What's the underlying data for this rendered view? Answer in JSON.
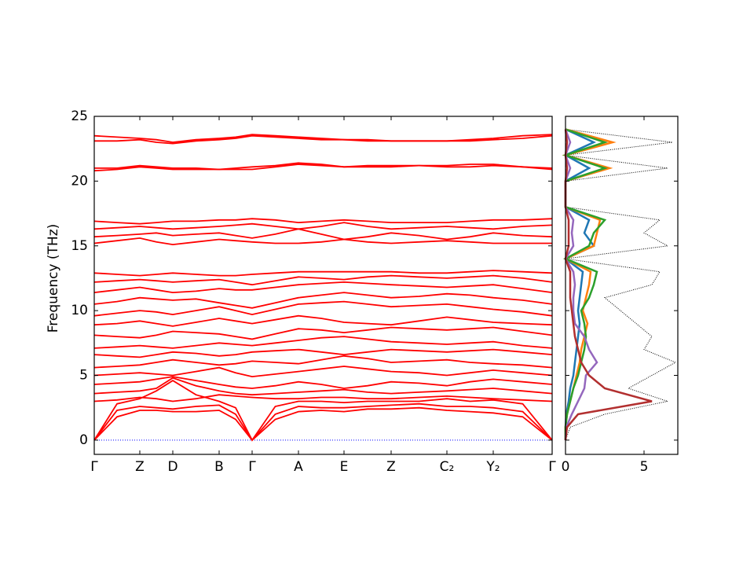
{
  "chart_data": [
    {
      "type": "band",
      "ylabel": "Frequency (THz)",
      "x": [
        0,
        0.29,
        0.58,
        0.79,
        1.0,
        1.295,
        1.59,
        1.8,
        2.01,
        2.305,
        2.6,
        2.89,
        3.18,
        3.48,
        3.78,
        4.135,
        4.49,
        4.785,
        5.08,
        5.455,
        5.83
      ],
      "xlim": [
        0,
        5.83
      ],
      "xticks": [
        {
          "value": 0,
          "label": "Γ"
        },
        {
          "value": 0.58,
          "label": "Z"
        },
        {
          "value": 1.0,
          "label": "D"
        },
        {
          "value": 1.59,
          "label": "B"
        },
        {
          "value": 2.01,
          "label": "Γ"
        },
        {
          "value": 2.6,
          "label": "A"
        },
        {
          "value": 3.18,
          "label": "E"
        },
        {
          "value": 3.78,
          "label": "Z"
        },
        {
          "value": 4.49,
          "label": "C₂"
        },
        {
          "value": 5.08,
          "label": "Y₂"
        },
        {
          "value": 5.83,
          "label": "Γ"
        }
      ],
      "ylim": [
        -1.1,
        25
      ],
      "yticks": [
        0,
        5,
        10,
        15,
        20,
        25
      ],
      "color": "#ff0000",
      "zero_line_color": "#0000ff",
      "bands": [
        [
          0,
          1.8,
          2.3,
          2.3,
          2.2,
          2.2,
          2.3,
          1.6,
          0,
          1.6,
          2.2,
          2.3,
          2.2,
          2.4,
          2.4,
          2.5,
          2.3,
          2.2,
          2.1,
          1.8,
          0
        ],
        [
          0,
          2.3,
          2.6,
          2.5,
          2.4,
          2.6,
          2.7,
          2.0,
          0,
          2.0,
          2.6,
          2.5,
          2.5,
          2.6,
          2.7,
          2.8,
          2.6,
          2.6,
          2.5,
          2.2,
          0
        ],
        [
          0,
          2.8,
          3.2,
          3.8,
          4.6,
          3.5,
          3.0,
          2.5,
          0,
          2.6,
          3.0,
          3.0,
          2.9,
          3.0,
          3.0,
          3.0,
          3.2,
          3.0,
          3.1,
          2.8,
          0
        ],
        [
          3.0,
          3.1,
          3.3,
          3.2,
          3.0,
          3.2,
          3.5,
          3.4,
          3.3,
          3.2,
          3.2,
          3.3,
          3.3,
          3.2,
          3.2,
          3.3,
          3.4,
          3.3,
          3.2,
          3.1,
          3.0
        ],
        [
          3.6,
          3.7,
          3.8,
          4.0,
          4.8,
          4.2,
          3.8,
          3.6,
          3.5,
          3.6,
          3.7,
          3.8,
          3.9,
          3.7,
          3.6,
          3.7,
          3.8,
          3.9,
          4.0,
          3.8,
          3.6
        ],
        [
          4.3,
          4.4,
          4.5,
          4.7,
          4.9,
          4.6,
          4.3,
          4.1,
          4.0,
          4.2,
          4.5,
          4.3,
          4.0,
          4.2,
          4.5,
          4.4,
          4.2,
          4.5,
          4.7,
          4.5,
          4.3
        ],
        [
          5.0,
          5.1,
          5.2,
          5.1,
          5.0,
          5.3,
          5.6,
          5.2,
          4.9,
          5.1,
          5.3,
          5.5,
          5.7,
          5.5,
          5.3,
          5.2,
          5.0,
          5.2,
          5.4,
          5.2,
          5.0
        ],
        [
          5.6,
          5.7,
          5.8,
          6.0,
          6.2,
          6.0,
          5.8,
          5.9,
          6.1,
          6.0,
          5.9,
          6.2,
          6.5,
          6.3,
          6.0,
          6.1,
          6.2,
          6.0,
          5.9,
          5.8,
          5.6
        ],
        [
          6.6,
          6.5,
          6.4,
          6.6,
          6.8,
          6.7,
          6.5,
          6.6,
          6.8,
          6.9,
          7.0,
          6.8,
          6.6,
          6.8,
          7.0,
          6.9,
          6.8,
          6.9,
          7.0,
          6.8,
          6.6
        ],
        [
          7.1,
          7.2,
          7.3,
          7.2,
          7.1,
          7.3,
          7.5,
          7.4,
          7.3,
          7.5,
          7.7,
          7.9,
          8.0,
          7.8,
          7.6,
          7.5,
          7.4,
          7.5,
          7.6,
          7.3,
          7.1
        ],
        [
          8.1,
          8.0,
          7.9,
          8.1,
          8.4,
          8.3,
          8.2,
          8.0,
          7.8,
          8.2,
          8.6,
          8.5,
          8.3,
          8.5,
          8.7,
          8.6,
          8.5,
          8.6,
          8.7,
          8.4,
          8.1
        ],
        [
          8.9,
          9.0,
          9.2,
          9.0,
          8.8,
          9.1,
          9.4,
          9.2,
          9.0,
          9.3,
          9.6,
          9.4,
          9.1,
          9.0,
          8.9,
          9.2,
          9.5,
          9.3,
          9.1,
          9.0,
          8.9
        ],
        [
          9.6,
          9.8,
          10.0,
          9.9,
          9.7,
          10.0,
          10.3,
          10.0,
          9.7,
          10.1,
          10.5,
          10.6,
          10.7,
          10.5,
          10.3,
          10.4,
          10.5,
          10.3,
          10.1,
          9.9,
          9.6
        ],
        [
          10.5,
          10.7,
          11.0,
          10.9,
          10.8,
          10.9,
          10.6,
          10.4,
          10.2,
          10.6,
          11.0,
          11.2,
          11.4,
          11.2,
          11.0,
          11.1,
          11.3,
          11.2,
          11.0,
          10.8,
          10.5
        ],
        [
          11.4,
          11.6,
          11.8,
          11.6,
          11.4,
          11.5,
          11.7,
          11.6,
          11.6,
          11.8,
          12.0,
          12.1,
          12.2,
          12.1,
          12.0,
          11.9,
          11.8,
          11.9,
          12.0,
          11.7,
          11.4
        ],
        [
          12.2,
          12.3,
          12.4,
          12.3,
          12.2,
          12.3,
          12.4,
          12.2,
          12.0,
          12.3,
          12.6,
          12.5,
          12.4,
          12.6,
          12.7,
          12.6,
          12.5,
          12.6,
          12.7,
          12.5,
          12.2
        ],
        [
          12.9,
          12.8,
          12.7,
          12.8,
          12.9,
          12.8,
          12.7,
          12.7,
          12.8,
          12.9,
          13.0,
          13.0,
          13.0,
          13.0,
          13.0,
          12.9,
          12.9,
          13.0,
          13.1,
          13.0,
          12.9
        ],
        [
          15.2,
          15.4,
          15.6,
          15.3,
          15.1,
          15.3,
          15.5,
          15.4,
          15.3,
          15.2,
          15.2,
          15.3,
          15.5,
          15.3,
          15.2,
          15.3,
          15.4,
          15.3,
          15.2,
          15.2,
          15.2
        ],
        [
          15.7,
          15.8,
          15.9,
          16.0,
          15.8,
          15.9,
          16.0,
          15.8,
          15.6,
          15.9,
          16.3,
          15.9,
          15.5,
          15.7,
          16.0,
          15.8,
          15.5,
          15.7,
          16.0,
          15.8,
          15.7
        ],
        [
          16.3,
          16.4,
          16.5,
          16.4,
          16.3,
          16.4,
          16.5,
          16.6,
          16.7,
          16.5,
          16.3,
          16.5,
          16.8,
          16.5,
          16.3,
          16.4,
          16.5,
          16.4,
          16.3,
          16.5,
          16.6
        ],
        [
          16.9,
          16.8,
          16.7,
          16.8,
          16.9,
          16.9,
          17.0,
          17.0,
          17.1,
          17.0,
          16.8,
          16.9,
          17.0,
          16.9,
          16.8,
          16.8,
          16.8,
          16.9,
          17.0,
          17.0,
          17.1
        ],
        [
          20.8,
          20.9,
          21.1,
          21.0,
          20.9,
          20.9,
          20.9,
          20.9,
          20.9,
          21.1,
          21.3,
          21.2,
          21.1,
          21.1,
          21.1,
          21.2,
          21.2,
          21.3,
          21.3,
          21.1,
          20.9
        ],
        [
          21.0,
          21.0,
          21.2,
          21.1,
          21.0,
          21.0,
          20.9,
          21.0,
          21.1,
          21.2,
          21.4,
          21.3,
          21.1,
          21.2,
          21.2,
          21.2,
          21.1,
          21.1,
          21.2,
          21.1,
          21.0
        ],
        [
          23.1,
          23.1,
          23.2,
          23.0,
          22.9,
          23.1,
          23.2,
          23.3,
          23.5,
          23.4,
          23.3,
          23.2,
          23.2,
          23.1,
          23.1,
          23.1,
          23.1,
          23.1,
          23.2,
          23.3,
          23.5
        ],
        [
          23.5,
          23.4,
          23.3,
          23.2,
          23.0,
          23.2,
          23.3,
          23.4,
          23.6,
          23.5,
          23.4,
          23.3,
          23.2,
          23.2,
          23.1,
          23.1,
          23.1,
          23.2,
          23.3,
          23.5,
          23.6
        ]
      ]
    },
    {
      "type": "dos",
      "freq": [
        0,
        1,
        2,
        3,
        4,
        5,
        6,
        7,
        8,
        9,
        10,
        11,
        12,
        13,
        14,
        15,
        16,
        17,
        18,
        19,
        20,
        21,
        22,
        23,
        24
      ],
      "xlim": [
        0,
        7.15
      ],
      "xticks": [
        0,
        5
      ],
      "ylim": [
        -1.1,
        25
      ],
      "yticks": [
        0,
        5,
        10,
        15,
        20,
        25
      ],
      "total": {
        "color": "#000000",
        "values": [
          0,
          0.3,
          2.5,
          6.5,
          4,
          5.5,
          7,
          5,
          5.5,
          4.5,
          3.5,
          2.5,
          5.5,
          6,
          0,
          6.5,
          5,
          6,
          0,
          0,
          0,
          6.5,
          0,
          6.8,
          0
        ]
      },
      "partials": [
        {
          "color": "#1f77b4",
          "values": [
            0,
            0,
            0.05,
            0.2,
            0.3,
            0.5,
            0.6,
            0.7,
            0.8,
            0.9,
            0.8,
            0.9,
            1,
            1.1,
            0,
            1.8,
            1.2,
            1.5,
            0,
            0,
            0,
            1.5,
            0,
            1.8,
            0
          ]
        },
        {
          "color": "#ff7f0e",
          "values": [
            0,
            0,
            0.1,
            0.3,
            0.5,
            0.7,
            0.9,
            1,
            1.2,
            1.4,
            1.1,
            1.3,
            1.5,
            1.6,
            0,
            1.8,
            2,
            2.2,
            0,
            0,
            0,
            2.8,
            0,
            3,
            0
          ]
        },
        {
          "color": "#2ca02c",
          "values": [
            0,
            0,
            0.1,
            0.3,
            0.5,
            0.8,
            1,
            1.2,
            1.3,
            1.2,
            1,
            1.5,
            1.8,
            2,
            0,
            1.5,
            1.8,
            2.5,
            0,
            0,
            0,
            2.5,
            0,
            2.5,
            0
          ]
        },
        {
          "color": "#9467bd",
          "values": [
            0,
            0.05,
            0.4,
            0.8,
            1.2,
            1.3,
            2,
            1.5,
            1.2,
            0.6,
            0.5,
            0.5,
            0.6,
            0.5,
            0,
            0.5,
            0.4,
            0.5,
            0,
            0,
            0,
            0.3,
            0,
            0.3,
            0
          ]
        },
        {
          "color": "#b22f2f",
          "values": [
            0,
            0.1,
            0.8,
            5.5,
            2.5,
            1.5,
            1,
            0.8,
            0.6,
            0.5,
            0.4,
            0.3,
            0.3,
            0.3,
            0,
            0.2,
            0.2,
            0.2,
            0,
            0,
            0,
            0.1,
            0,
            0.1,
            0
          ]
        }
      ]
    }
  ]
}
